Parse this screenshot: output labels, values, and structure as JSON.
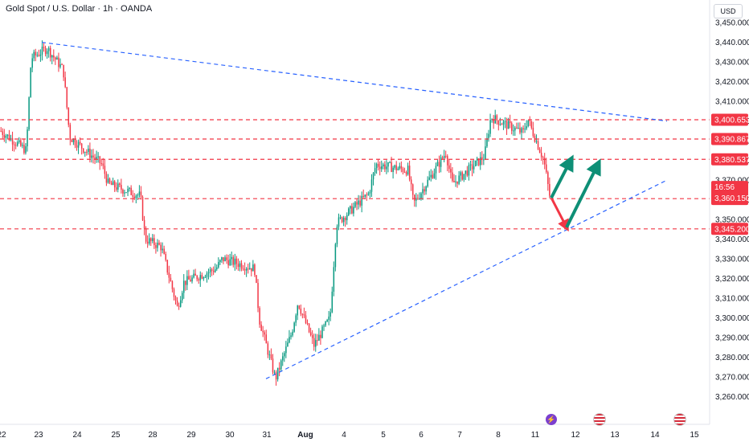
{
  "header": {
    "title": "Gold Spot / U.S. Dollar · 1h · OANDA",
    "currency": "USD"
  },
  "colors": {
    "up": "#089981",
    "down": "#f23645",
    "trend_line": "#2962ff",
    "level_line": "#f23645",
    "arrow_up": "#0e8f76",
    "arrow_down": "#f23645"
  },
  "events": [
    {
      "icon": "lightning-icon",
      "date": "Aug 11 (late)"
    },
    {
      "icon": "us-flag-icon",
      "date": "Aug 12"
    },
    {
      "icon": "us-flag-icon",
      "date": "Aug 14"
    }
  ],
  "chart_data": {
    "type": "candlestick",
    "title": "Gold Spot / U.S. Dollar · 1h · OANDA",
    "xlabel": "",
    "ylabel": "",
    "ylim": [
      3255,
      3455
    ],
    "grid": false,
    "x_tick_labels": [
      "22",
      "23",
      "24",
      "25",
      "28",
      "29",
      "30",
      "31",
      "Aug",
      "4",
      "5",
      "6",
      "7",
      "8",
      "11",
      "12",
      "13",
      "14",
      "15"
    ],
    "y_tick_labels": [
      "3,260.000",
      "3,270.000",
      "3,280.000",
      "3,290.000",
      "3,300.000",
      "3,310.000",
      "3,320.000",
      "3,330.000",
      "3,340.000",
      "3,350.000",
      "3,360.000",
      "3,370.000",
      "3,380.000",
      "3,390.000",
      "3,400.000",
      "3,410.000",
      "3,420.000",
      "3,430.000",
      "3,440.000",
      "3,450.000"
    ],
    "horizontal_levels": [
      "3,400.653",
      "3,390.867",
      "3,380.537",
      "3,360.555",
      "3,345.200"
    ],
    "current_price": {
      "value": "3,360.150",
      "countdown": "16:56"
    },
    "close_path": [
      {
        "date": "22",
        "price": 3395
      },
      {
        "date": "22",
        "price": 3385
      },
      {
        "date": "23",
        "price": 3432
      },
      {
        "date": "23",
        "price": 3437
      },
      {
        "date": "23",
        "price": 3426
      },
      {
        "date": "24",
        "price": 3392
      },
      {
        "date": "24",
        "price": 3378
      },
      {
        "date": "25",
        "price": 3368
      },
      {
        "date": "25",
        "price": 3362
      },
      {
        "date": "28",
        "price": 3340
      },
      {
        "date": "28",
        "price": 3336
      },
      {
        "date": "28",
        "price": 3305
      },
      {
        "date": "29",
        "price": 3318
      },
      {
        "date": "29",
        "price": 3325
      },
      {
        "date": "30",
        "price": 3330
      },
      {
        "date": "30",
        "price": 3325
      },
      {
        "date": "31",
        "price": 3299
      },
      {
        "date": "31",
        "price": 3269
      },
      {
        "date": "31",
        "price": 3292
      },
      {
        "date": "Aug",
        "price": 3308
      },
      {
        "date": "Aug",
        "price": 3286
      },
      {
        "date": "Aug",
        "price": 3300
      },
      {
        "date": "4",
        "price": 3348
      },
      {
        "date": "4",
        "price": 3363
      },
      {
        "date": "5",
        "price": 3378
      },
      {
        "date": "5",
        "price": 3375
      },
      {
        "date": "6",
        "price": 3358
      },
      {
        "date": "6",
        "price": 3384
      },
      {
        "date": "7",
        "price": 3368
      },
      {
        "date": "7",
        "price": 3382
      },
      {
        "date": "8",
        "price": 3402
      },
      {
        "date": "8",
        "price": 3394
      },
      {
        "date": "11",
        "price": 3401
      },
      {
        "date": "11",
        "price": 3380
      },
      {
        "date": "11",
        "price": 3360
      }
    ],
    "annotations": [
      {
        "type": "trend-line",
        "style": "dashed",
        "from": {
          "date": "23",
          "price": 3440
        },
        "to": {
          "date": "14",
          "price": 3400
        }
      },
      {
        "type": "trend-line",
        "style": "dashed",
        "from": {
          "date": "31",
          "price": 3269
        },
        "to": {
          "date": "14",
          "price": 3370
        }
      },
      {
        "type": "arrow",
        "color": "down",
        "from": {
          "date": "11",
          "price": 3361
        },
        "to": {
          "date": "11",
          "price": 3346
        }
      },
      {
        "type": "arrow",
        "color": "up",
        "from": {
          "date": "11",
          "price": 3361
        },
        "to": {
          "date": "11",
          "price": 3380
        }
      },
      {
        "type": "arrow",
        "color": "up",
        "from": {
          "date": "11",
          "price": 3346
        },
        "to": {
          "date": "12",
          "price": 3378
        }
      }
    ]
  }
}
